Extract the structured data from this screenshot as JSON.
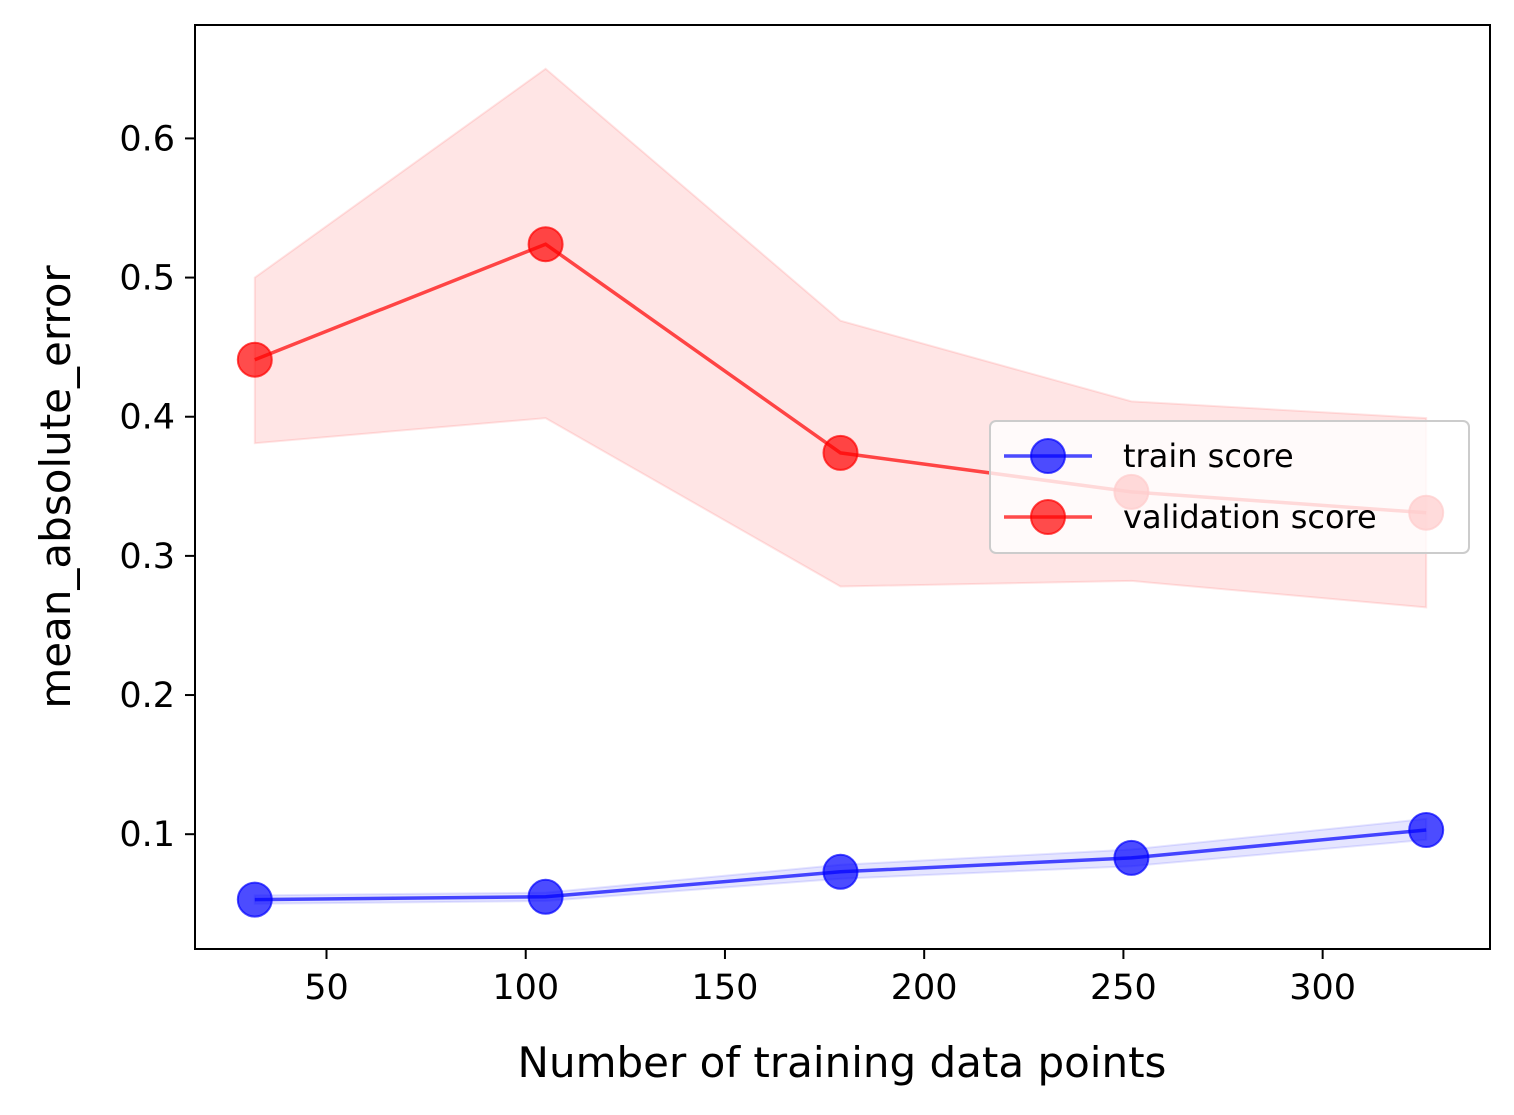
{
  "chart_data": {
    "type": "line",
    "title": "",
    "xlabel": "Number of training data points",
    "ylabel": "mean_absolute_error",
    "xlim": [
      17,
      342
    ],
    "ylim": [
      0.0175,
      0.6815
    ],
    "xticks": [
      50,
      100,
      150,
      200,
      250,
      300
    ],
    "xtick_labels": [
      "50",
      "100",
      "150",
      "200",
      "250",
      "300"
    ],
    "yticks": [
      0.1,
      0.2,
      0.3,
      0.4,
      0.5,
      0.6
    ],
    "ytick_labels": [
      "0.1",
      "0.2",
      "0.3",
      "0.4",
      "0.5",
      "0.6"
    ],
    "grid": false,
    "legend_position": "center-right",
    "x": [
      32,
      105,
      179,
      252,
      326
    ],
    "series": [
      {
        "name": "train score",
        "color": "#0000ff",
        "values": [
          0.053,
          0.055,
          0.073,
          0.083,
          0.103
        ],
        "band_lower": [
          0.05,
          0.052,
          0.068,
          0.077,
          0.096
        ],
        "band_upper": [
          0.056,
          0.058,
          0.078,
          0.089,
          0.111
        ]
      },
      {
        "name": "validation score",
        "color": "#ff0000",
        "values": [
          0.441,
          0.524,
          0.374,
          0.346,
          0.331
        ],
        "band_lower": [
          0.381,
          0.399,
          0.278,
          0.282,
          0.263
        ],
        "band_upper": [
          0.5,
          0.65,
          0.469,
          0.411,
          0.399
        ]
      }
    ]
  }
}
